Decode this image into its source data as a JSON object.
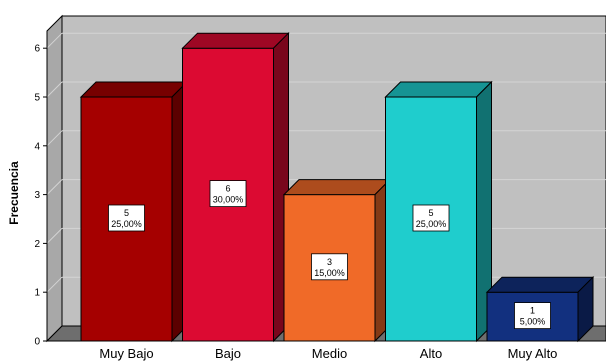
{
  "chart_data": {
    "type": "bar",
    "ylabel": "Frecuencia",
    "ylim": [
      0,
      6.5
    ],
    "yticks": [
      0,
      1,
      2,
      3,
      4,
      5,
      6
    ],
    "grid": true,
    "categories": [
      "Muy Bajo",
      "Bajo",
      "Medio",
      "Alto",
      "Muy Alto"
    ],
    "values": [
      5,
      6,
      3,
      5,
      1
    ],
    "percent_labels": [
      "25,00%",
      "30,00%",
      "15,00%",
      "25,00%",
      "5,00%"
    ],
    "colors": [
      "#A50000",
      "#DC0A32",
      "#F06A28",
      "#1FCDCD",
      "#12307F"
    ]
  }
}
